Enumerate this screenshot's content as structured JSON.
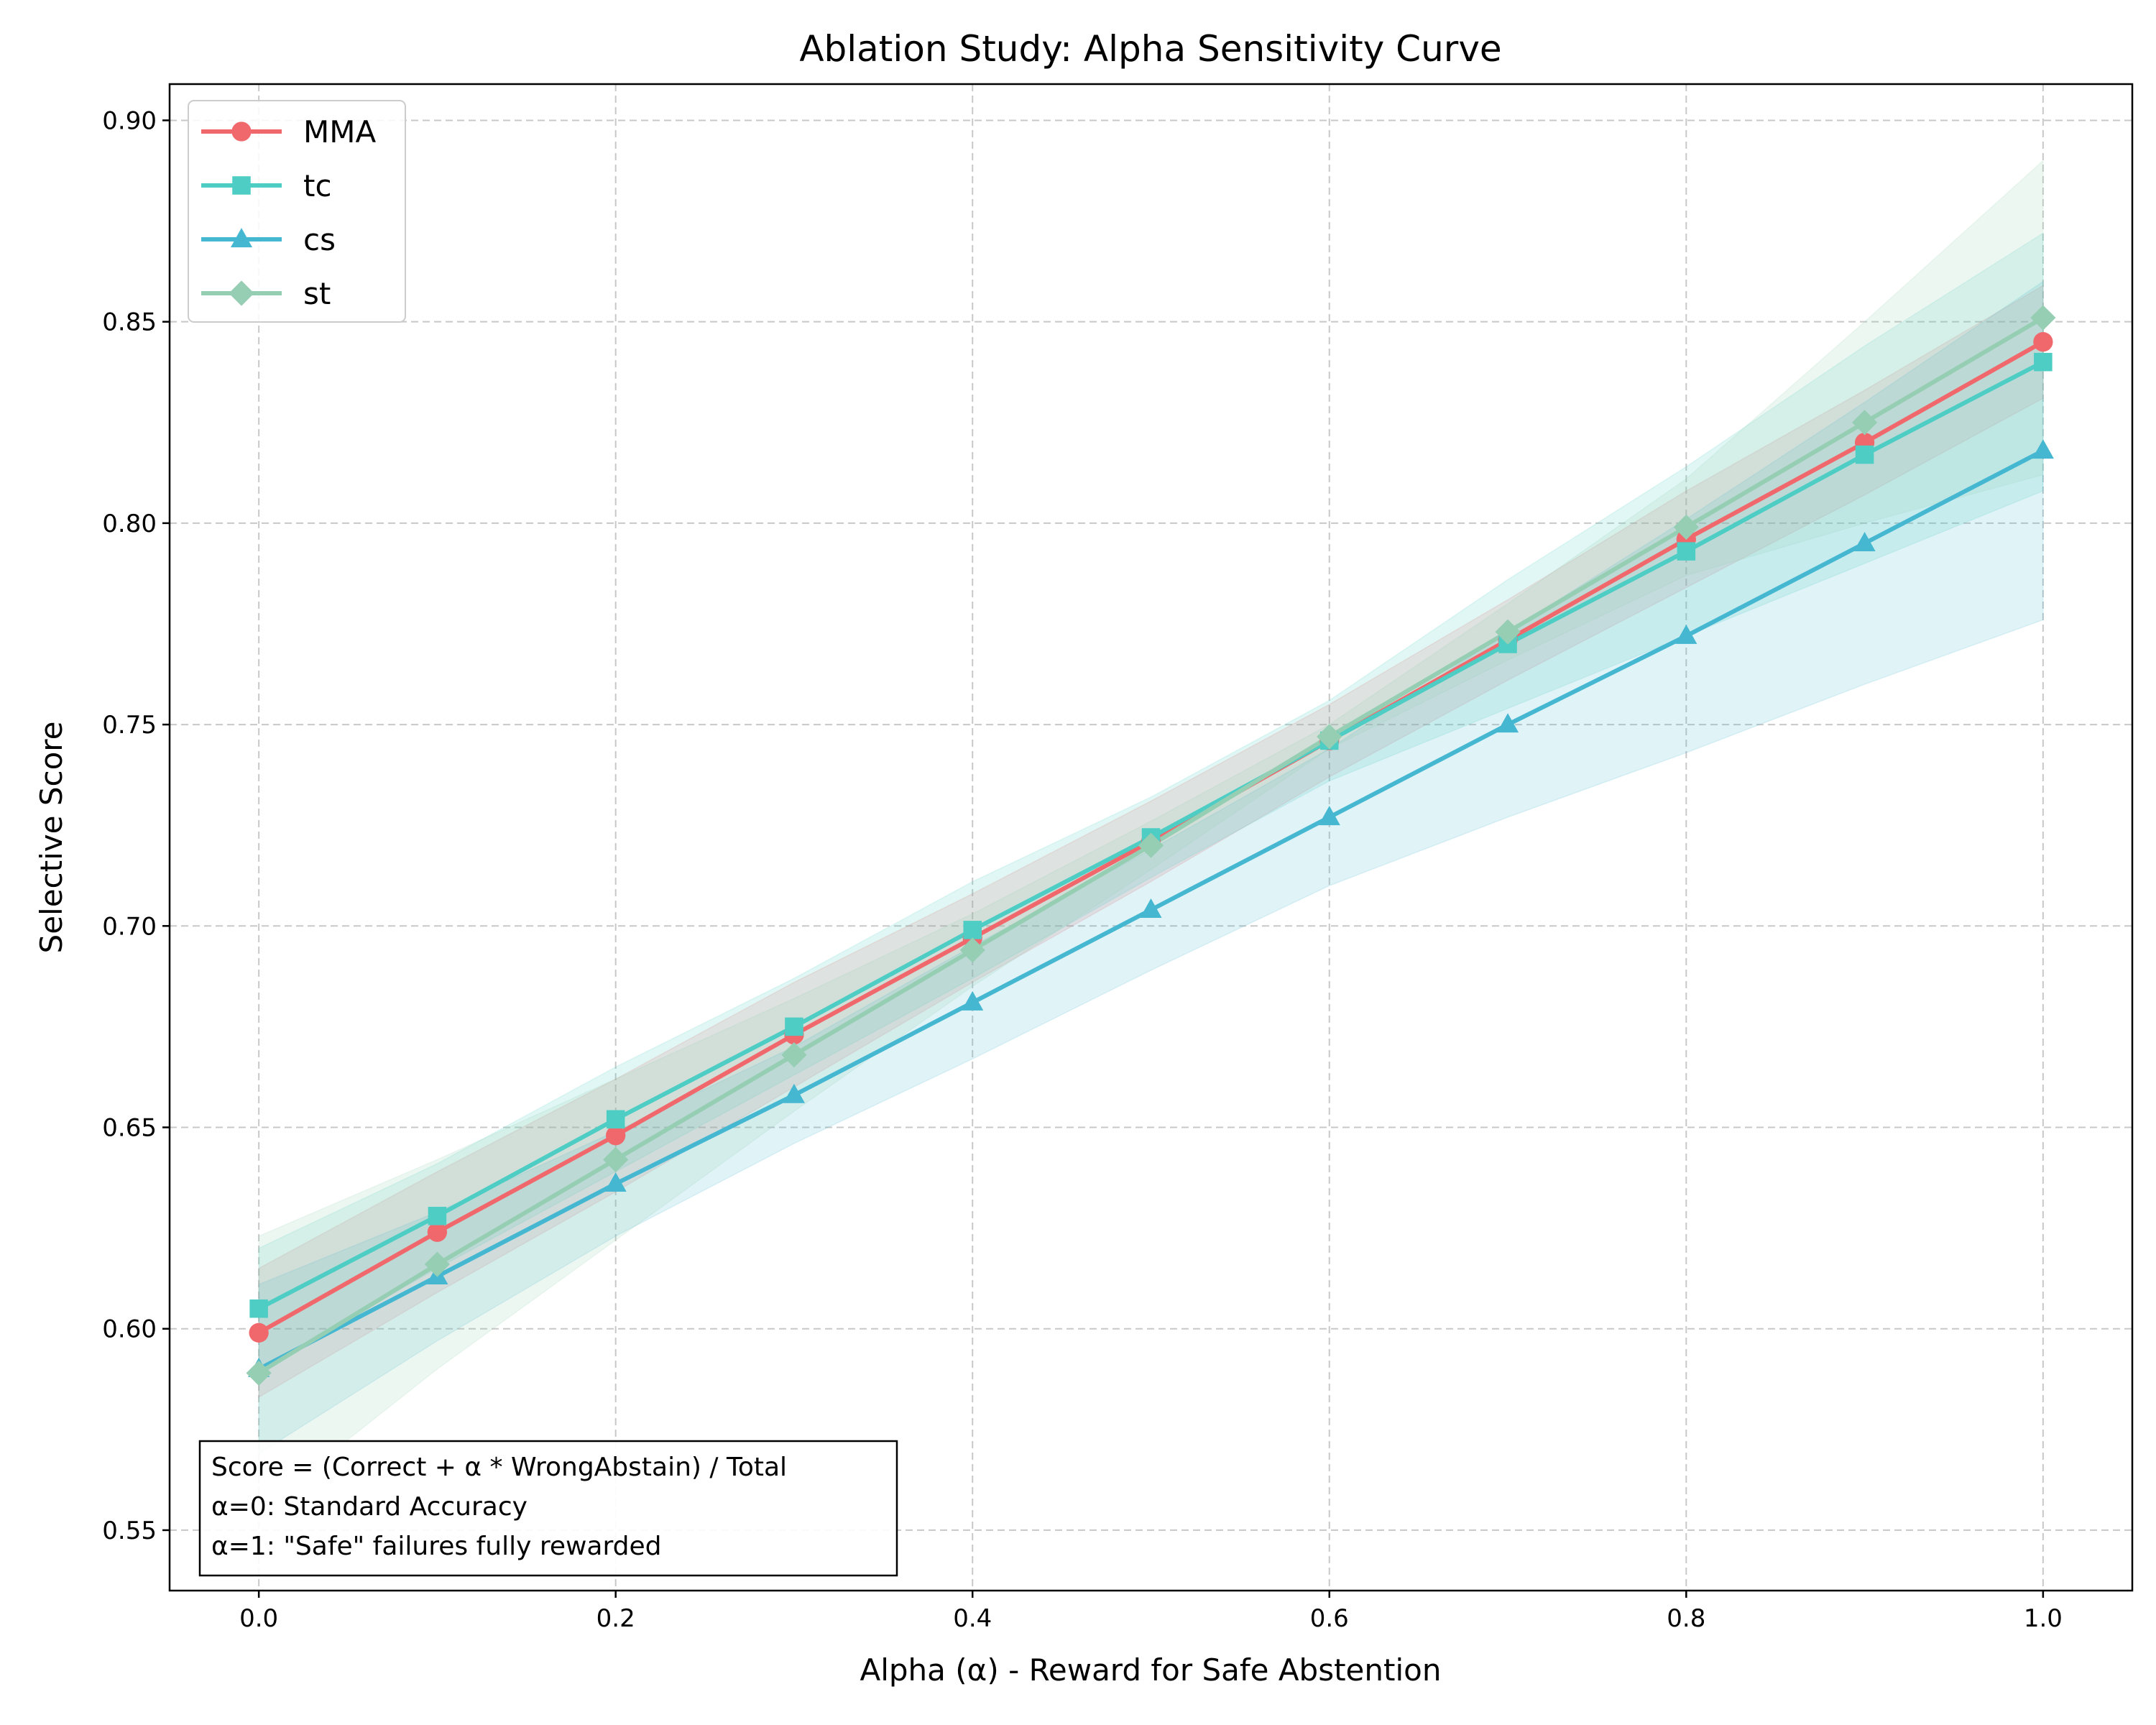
{
  "chart_data": {
    "type": "line",
    "title": "Ablation Study: Alpha Sensitivity Curve",
    "xlabel": "Alpha (α) - Reward for Safe Abstention",
    "ylabel": "Selective Score",
    "xlim": [
      -0.05,
      1.05
    ],
    "ylim": [
      0.535,
      0.909
    ],
    "xticks": [
      0.0,
      0.2,
      0.4,
      0.6,
      0.8,
      1.0
    ],
    "xtick_labels": [
      "0.0",
      "0.2",
      "0.4",
      "0.6",
      "0.8",
      "1.0"
    ],
    "yticks": [
      0.55,
      0.6,
      0.65,
      0.7,
      0.75,
      0.8,
      0.85,
      0.9
    ],
    "ytick_labels": [
      "0.55",
      "0.60",
      "0.65",
      "0.70",
      "0.75",
      "0.80",
      "0.85",
      "0.90"
    ],
    "grid": true,
    "legend_position": "top-left",
    "x": [
      0.0,
      0.1,
      0.2,
      0.3,
      0.4,
      0.5,
      0.6,
      0.7,
      0.8,
      0.9,
      1.0
    ],
    "series": [
      {
        "name": "MMA",
        "color": "#f0686c",
        "marker": "circle",
        "values": [
          0.599,
          0.624,
          0.648,
          0.673,
          0.697,
          0.721,
          0.746,
          0.771,
          0.796,
          0.82,
          0.845
        ],
        "lower": [
          0.583,
          0.609,
          0.634,
          0.66,
          0.686,
          0.711,
          0.737,
          0.761,
          0.784,
          0.807,
          0.831
        ],
        "upper": [
          0.615,
          0.639,
          0.662,
          0.686,
          0.708,
          0.731,
          0.755,
          0.781,
          0.808,
          0.833,
          0.859
        ]
      },
      {
        "name": "tc",
        "color": "#4ecdc4",
        "marker": "square",
        "values": [
          0.605,
          0.628,
          0.652,
          0.675,
          0.699,
          0.722,
          0.746,
          0.77,
          0.793,
          0.817,
          0.84
        ],
        "lower": [
          0.59,
          0.615,
          0.639,
          0.663,
          0.687,
          0.712,
          0.736,
          0.754,
          0.772,
          0.79,
          0.808
        ],
        "upper": [
          0.62,
          0.641,
          0.665,
          0.687,
          0.711,
          0.732,
          0.756,
          0.786,
          0.814,
          0.844,
          0.872
        ]
      },
      {
        "name": "cs",
        "color": "#45b7d1",
        "marker": "triangle",
        "values": [
          0.59,
          0.613,
          0.636,
          0.658,
          0.681,
          0.704,
          0.727,
          0.75,
          0.772,
          0.795,
          0.818
        ],
        "lower": [
          0.569,
          0.597,
          0.623,
          0.646,
          0.667,
          0.689,
          0.71,
          0.727,
          0.743,
          0.76,
          0.776
        ],
        "upper": [
          0.611,
          0.629,
          0.649,
          0.67,
          0.695,
          0.719,
          0.744,
          0.773,
          0.801,
          0.83,
          0.86
        ]
      },
      {
        "name": "st",
        "color": "#96ceb4",
        "marker": "diamond",
        "values": [
          0.589,
          0.616,
          0.642,
          0.668,
          0.694,
          0.72,
          0.747,
          0.773,
          0.799,
          0.825,
          0.851
        ],
        "lower": [
          0.555,
          0.59,
          0.622,
          0.654,
          0.685,
          0.714,
          0.744,
          0.766,
          0.787,
          0.8,
          0.812
        ],
        "upper": [
          0.623,
          0.642,
          0.662,
          0.682,
          0.703,
          0.726,
          0.75,
          0.78,
          0.811,
          0.85,
          0.89
        ]
      }
    ],
    "annotation": {
      "lines": [
        "Score = (Correct + α * WrongAbstain) / Total",
        "α=0: Standard Accuracy",
        "α=1: \"Safe\" failures fully rewarded"
      ],
      "position": "bottom-left"
    }
  }
}
